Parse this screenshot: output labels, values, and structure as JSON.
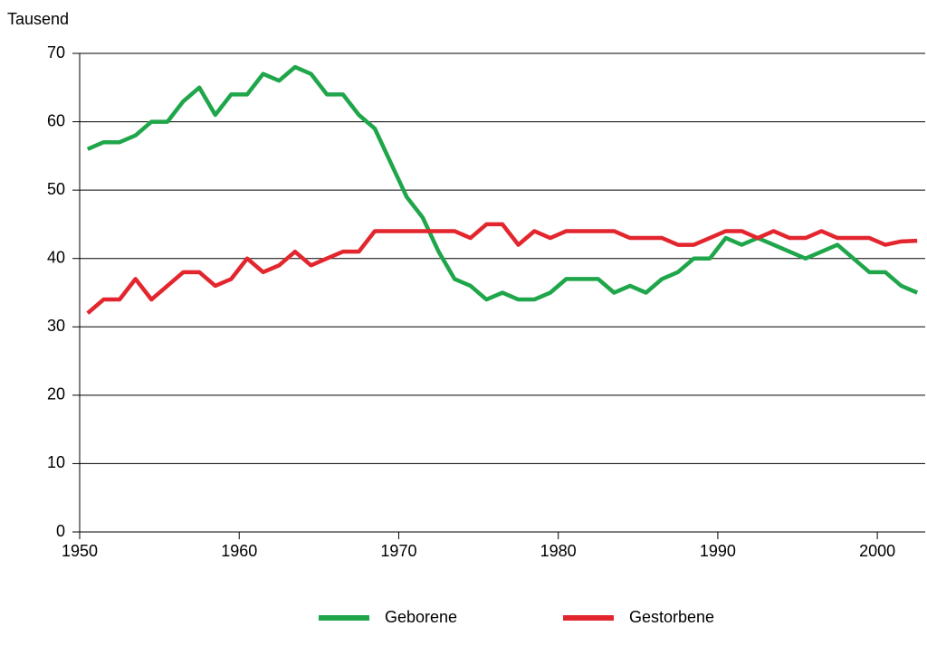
{
  "chart_data": {
    "type": "line",
    "y_axis_label": "Tausend",
    "x": [
      1950.5,
      1951.5,
      1952.5,
      1953.5,
      1954.5,
      1955.5,
      1956.5,
      1957.5,
      1958.5,
      1959.5,
      1960.5,
      1961.5,
      1962.5,
      1963.5,
      1964.5,
      1965.5,
      1966.5,
      1967.5,
      1968.5,
      1969.5,
      1970.5,
      1971.5,
      1972.5,
      1973.5,
      1974.5,
      1975.5,
      1976.5,
      1977.5,
      1978.5,
      1979.5,
      1980.5,
      1981.5,
      1982.5,
      1983.5,
      1984.5,
      1985.5,
      1986.5,
      1987.5,
      1988.5,
      1989.5,
      1990.5,
      1991.5,
      1992.5,
      1993.5,
      1994.5,
      1995.5,
      1996.5,
      1997.5,
      1998.5,
      1999.5,
      2000.5,
      2001.5,
      2002.5
    ],
    "series": [
      {
        "name": "Geborene",
        "color": "#1fa64a",
        "values": [
          56,
          57,
          57,
          58,
          60,
          60,
          63,
          65,
          61,
          64,
          64,
          67,
          66,
          68,
          67,
          64,
          64,
          61,
          59,
          54,
          49,
          46,
          41,
          37,
          36,
          34,
          35,
          34,
          34,
          35,
          37,
          37,
          37,
          35,
          36,
          35,
          37,
          38,
          40,
          40,
          43,
          42,
          43,
          42,
          41,
          40,
          41,
          42,
          40,
          38,
          38,
          36,
          35
        ]
      },
      {
        "name": "Gestorbene",
        "color": "#e3262e",
        "values": [
          32,
          34,
          34,
          37,
          34,
          36,
          38,
          38,
          36,
          37,
          40,
          38,
          39,
          41,
          39,
          40,
          41,
          41,
          44,
          44,
          44,
          44,
          44,
          44,
          43,
          45,
          45,
          42,
          44,
          43,
          44,
          44,
          44,
          44,
          43,
          43,
          43,
          42,
          42,
          43,
          44,
          44,
          43,
          44,
          43,
          43,
          44,
          43,
          43,
          43,
          42,
          42.5,
          42.6
        ]
      }
    ],
    "xlim": [
      1950,
      2003
    ],
    "xticks": [
      1950,
      1960,
      1970,
      1980,
      1990,
      2000
    ],
    "ylim": [
      0,
      70
    ],
    "yticks": [
      0,
      10,
      20,
      30,
      40,
      50,
      60,
      70
    ],
    "grid": true,
    "legend": "bottom"
  }
}
